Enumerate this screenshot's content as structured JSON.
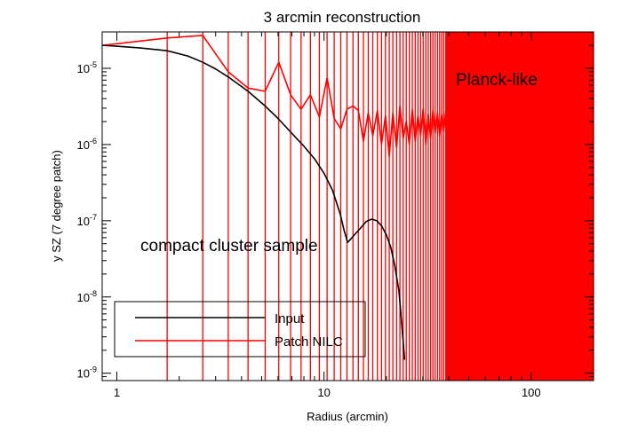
{
  "chart_data": {
    "type": "line",
    "title": "3 arcmin reconstruction",
    "xlabel": "Radius (arcmin)",
    "ylabel": "y SZ (7 degree patch)",
    "xscale": "log",
    "yscale": "log",
    "xlim": [
      0.85,
      200
    ],
    "ylim": [
      8e-10,
      3e-05
    ],
    "x_ticks": [
      {
        "value": 1,
        "label": "1"
      },
      {
        "value": 10,
        "label": "10"
      },
      {
        "value": 100,
        "label": "100"
      }
    ],
    "y_ticks": [
      {
        "value": 1e-09,
        "base": "10",
        "exp": "-9"
      },
      {
        "value": 1e-08,
        "base": "10",
        "exp": "-8"
      },
      {
        "value": 1e-07,
        "base": "10",
        "exp": "-7"
      },
      {
        "value": 1e-06,
        "base": "10",
        "exp": "-6"
      },
      {
        "value": 1e-05,
        "base": "10",
        "exp": "-5"
      }
    ],
    "annotations": {
      "planck": "Planck-like",
      "compact": "compact cluster sample"
    },
    "legend": {
      "position": "bottom-left",
      "entries": [
        {
          "label": "Input",
          "color": "#000000"
        },
        {
          "label": "Patch NILC",
          "color": "#ff0000"
        }
      ]
    },
    "vertical_lines": {
      "color": "#ff0000",
      "x": [
        1.75,
        2.6,
        3.45,
        4.3,
        5.2,
        6.05,
        6.9,
        7.75,
        8.6,
        9.5,
        10.35,
        11.2,
        12.05,
        12.9,
        13.8,
        14.65,
        15.5,
        16.35,
        17.2,
        18.1,
        18.95,
        19.8,
        20.65,
        21.5,
        22.4,
        23.25,
        24.1,
        24.95,
        25.8,
        26.7,
        27.55,
        28.4,
        29.25,
        30.1,
        31,
        31.85,
        32.7,
        33.55,
        34.4,
        35.3,
        36.15,
        37,
        37.85,
        38.7
      ],
      "solid_fill_from": 38.5
    },
    "series": [
      {
        "name": "Input",
        "color": "#000000",
        "points": [
          [
            0.85,
            2e-05
          ],
          [
            1,
            1.95e-05
          ],
          [
            1.3,
            1.85e-05
          ],
          [
            1.75,
            1.7e-05
          ],
          [
            2.2,
            1.45e-05
          ],
          [
            2.6,
            1.2e-05
          ],
          [
            3.0,
            9.8e-06
          ],
          [
            3.5,
            7.5e-06
          ],
          [
            4.3,
            5e-06
          ],
          [
            5.2,
            3.2e-06
          ],
          [
            6.0,
            2.2e-06
          ],
          [
            7.0,
            1.4e-06
          ],
          [
            8.0,
            9.5e-07
          ],
          [
            9.0,
            6.5e-07
          ],
          [
            10.0,
            4.2e-07
          ],
          [
            11.0,
            2.5e-07
          ],
          [
            12.0,
            1.2e-07
          ],
          [
            12.5,
            7.5e-08
          ],
          [
            13.0,
            5.2e-08
          ],
          [
            13.5,
            5.8e-08
          ],
          [
            14.0,
            6.5e-08
          ],
          [
            15.0,
            8e-08
          ],
          [
            16.0,
            9.8e-08
          ],
          [
            17.0,
            1.05e-07
          ],
          [
            18.0,
            1e-07
          ],
          [
            19.0,
            8.5e-08
          ],
          [
            20.0,
            6.5e-08
          ],
          [
            21.0,
            4.5e-08
          ],
          [
            22.0,
            2.5e-08
          ],
          [
            23.0,
            1.2e-08
          ],
          [
            23.5,
            6e-09
          ],
          [
            24.0,
            3e-09
          ],
          [
            24.5,
            1.5e-09
          ]
        ]
      },
      {
        "name": "Patch NILC",
        "color": "#ff0000",
        "points": [
          [
            0.85,
            2e-05
          ],
          [
            1.75,
            2.5e-05
          ],
          [
            2.6,
            2.7e-05
          ],
          [
            3.45,
            9e-06
          ],
          [
            4.3,
            5.5e-06
          ],
          [
            5.2,
            5e-06
          ],
          [
            6.05,
            1.2e-05
          ],
          [
            6.9,
            4.5e-06
          ],
          [
            7.75,
            2.9e-06
          ],
          [
            8.6,
            4.5e-06
          ],
          [
            9.5,
            2.3e-06
          ],
          [
            10.35,
            7.5e-06
          ],
          [
            11.2,
            2.2e-06
          ],
          [
            12.05,
            1.6e-06
          ],
          [
            12.9,
            2.9e-06
          ],
          [
            13.8,
            3.2e-06
          ],
          [
            14.65,
            2.8e-06
          ],
          [
            15.5,
            1.1e-06
          ],
          [
            16.35,
            2.6e-06
          ],
          [
            17.2,
            1.3e-06
          ],
          [
            18.1,
            2.8e-06
          ],
          [
            18.95,
            1e-06
          ],
          [
            19.8,
            2.4e-06
          ],
          [
            20.65,
            7e-07
          ],
          [
            21.5,
            2.6e-06
          ],
          [
            22.4,
            9e-07
          ],
          [
            23.25,
            3.2e-06
          ],
          [
            24.1,
            1.2e-06
          ],
          [
            24.95,
            2e-06
          ],
          [
            25.8,
            1e-06
          ],
          [
            26.7,
            2.9e-06
          ],
          [
            27.55,
            1.1e-06
          ],
          [
            28.4,
            2.4e-06
          ],
          [
            29.25,
            1.3e-06
          ],
          [
            30.1,
            3e-06
          ],
          [
            31.0,
            1e-06
          ],
          [
            31.85,
            2.5e-06
          ],
          [
            32.7,
            1.2e-06
          ],
          [
            33.55,
            2.8e-06
          ],
          [
            34.4,
            1.4e-06
          ],
          [
            35.3,
            2.6e-06
          ],
          [
            36.15,
            1.3e-06
          ],
          [
            37.0,
            2.5e-06
          ],
          [
            37.85,
            1.5e-06
          ],
          [
            38.7,
            2.7e-06
          ]
        ]
      }
    ]
  }
}
